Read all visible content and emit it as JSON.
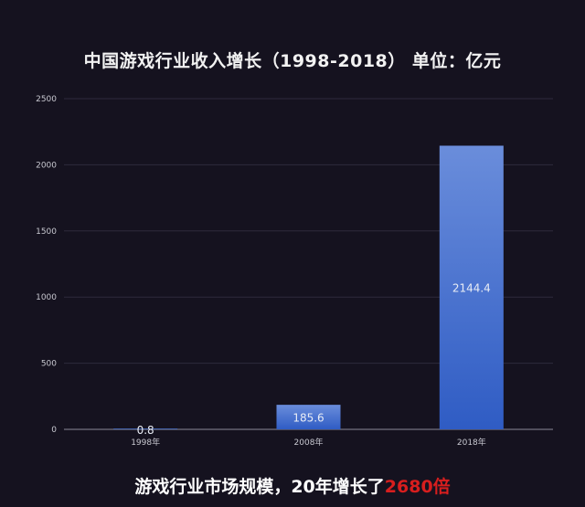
{
  "chart_data": {
    "type": "bar",
    "title": "中国游戏行业收入增长（1998-2018） 单位：亿元",
    "categories": [
      "1998年",
      "2008年",
      "2018年"
    ],
    "values": [
      0.8,
      185.6,
      2144.4
    ],
    "data_labels": [
      "0.8",
      "185.6",
      "2144.4"
    ],
    "ylim": [
      0,
      2500
    ],
    "yticks": [
      0,
      500,
      1000,
      1500,
      2000,
      2500
    ],
    "grid": true,
    "legend": "none"
  },
  "caption": {
    "text": "游戏行业市场规模，20年增长了",
    "highlight": "2680倍"
  },
  "colors": {
    "background": "#15121f",
    "bar_top": "#6a8ddb",
    "bar_bottom": "#2f5cc4",
    "highlight": "#d81e1e"
  }
}
